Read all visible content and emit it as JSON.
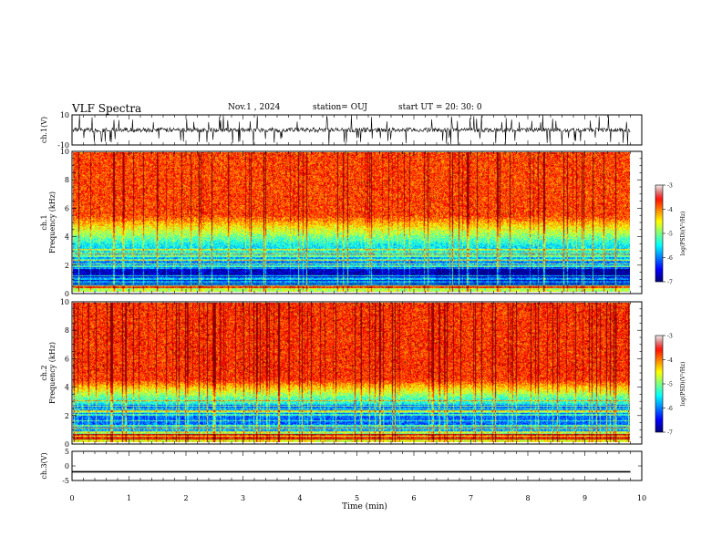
{
  "header": {
    "title": "VLF Spectra",
    "date": "Nov.1 , 2024",
    "station": "station= OUJ",
    "start_ut": "start UT = 20: 30: 0"
  },
  "chart_data": [
    {
      "type": "line",
      "panel": "ch1-waveform",
      "ylabel": "ch.1(V)",
      "ylim": [
        -10,
        10
      ],
      "y_ticks": [
        10,
        -10
      ],
      "x_range": [
        0,
        10
      ],
      "trace_mean": 0,
      "trace_extent_x": [
        0,
        9.8
      ],
      "spike_max": 10,
      "spike_min": -10,
      "color": "#000000"
    },
    {
      "type": "heatmap",
      "panel": "ch1-spectrogram",
      "ylabel": "ch.1 Frequency (kHz)",
      "ylim": [
        0,
        10
      ],
      "y_ticks": [
        0,
        2,
        4,
        6,
        8,
        10
      ],
      "x_range": [
        0,
        10
      ],
      "data_extent_x": [
        0,
        9.8
      ],
      "colorbar": {
        "label": "log(PSD)(V²/Hz)",
        "range": [
          -7,
          -3
        ],
        "ticks": [
          -3,
          -4,
          -5,
          -6,
          -7
        ]
      }
    },
    {
      "type": "heatmap",
      "panel": "ch2-spectrogram",
      "ylabel": "ch.2 Frequency (kHz)",
      "ylim": [
        0,
        10
      ],
      "y_ticks": [
        0,
        2,
        4,
        6,
        8,
        10
      ],
      "x_range": [
        0,
        10
      ],
      "data_extent_x": [
        0,
        9.8
      ],
      "colorbar": {
        "label": "log(PSD)(V²/Hz)",
        "range": [
          -7,
          -3
        ],
        "ticks": [
          -3,
          -4,
          -5,
          -6,
          -7
        ]
      }
    },
    {
      "type": "line",
      "panel": "ch3-waveform",
      "ylabel": "ch.3(V)",
      "ylim": [
        -5,
        5
      ],
      "y_ticks": [
        5,
        0,
        -5
      ],
      "x_range": [
        0,
        10
      ],
      "trace_value": -2,
      "trace_extent_x": [
        0,
        9.8
      ],
      "color": "#000000"
    }
  ],
  "x_axis": {
    "label": "Time (min)",
    "ticks": [
      "0",
      "1",
      "2",
      "3",
      "4",
      "5",
      "6",
      "7",
      "8",
      "9",
      "10"
    ]
  }
}
